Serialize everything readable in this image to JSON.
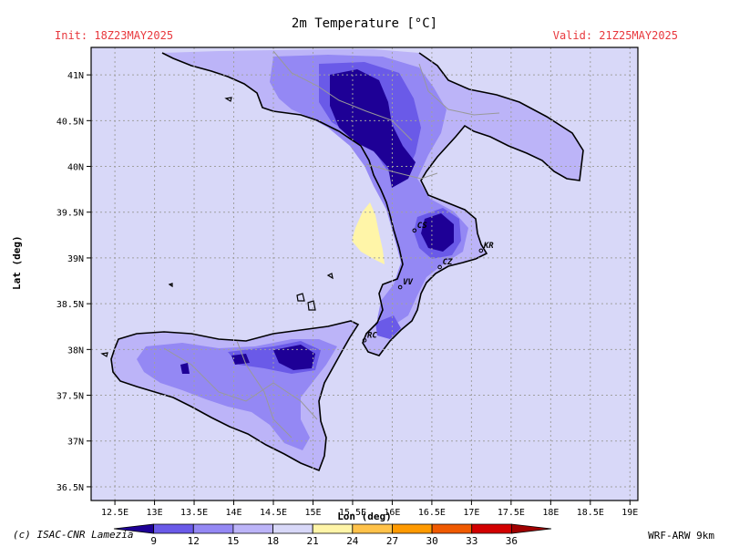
{
  "header": {
    "title": "2m Temperature [°C]",
    "init": "Init: 18Z23MAY2025",
    "valid": "Valid: 21Z25MAY2025"
  },
  "footer": {
    "credit": "(c) ISAC-CNR Lamezia",
    "model": "WRF-ARW 9km"
  },
  "map": {
    "xlabel": "Lon (deg)",
    "ylabel": "Lat (deg)",
    "lon_range": [
      12.2,
      19.1
    ],
    "lat_range": [
      36.35,
      41.3
    ],
    "lon_ticks": [
      "12.5E",
      "13E",
      "13.5E",
      "14E",
      "14.5E",
      "15E",
      "15.5E",
      "16E",
      "16.5E",
      "17E",
      "17.5E",
      "18E",
      "18.5E",
      "19E"
    ],
    "lat_ticks": [
      "41N",
      "40.5N",
      "40N",
      "39.5N",
      "39N",
      "38.5N",
      "38N",
      "37.5N",
      "37N",
      "36.5N"
    ],
    "grid": true,
    "sea_color": "#d8d8f8",
    "cities": [
      {
        "code": "CS",
        "lon": 16.28,
        "lat": 39.3
      },
      {
        "code": "KR",
        "lon": 17.12,
        "lat": 39.08
      },
      {
        "code": "CZ",
        "lon": 16.6,
        "lat": 38.9
      },
      {
        "code": "VV",
        "lon": 16.1,
        "lat": 38.68
      },
      {
        "code": "RC",
        "lon": 15.65,
        "lat": 38.1
      }
    ]
  },
  "colorbar": {
    "labels": [
      "9",
      "12",
      "15",
      "18",
      "21",
      "24",
      "27",
      "30",
      "33",
      "36"
    ],
    "colors": [
      "#1e0096",
      "#6a5ae8",
      "#9488f4",
      "#bcb4f8",
      "#d8d8f8",
      "#fff5a8",
      "#ffc24a",
      "#ff9a00",
      "#f05a00",
      "#d20000",
      "#a00000"
    ]
  }
}
